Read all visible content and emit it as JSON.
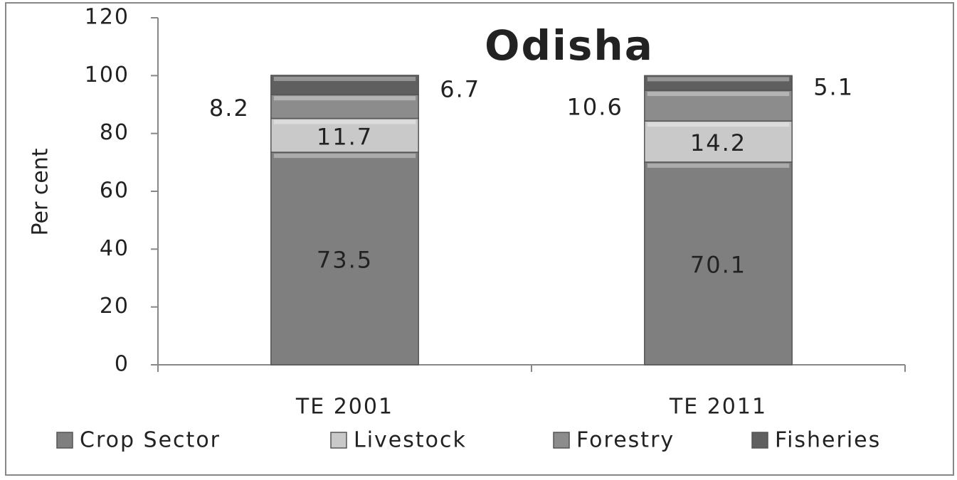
{
  "chart_data": {
    "type": "bar",
    "stacked": true,
    "title": "Odisha",
    "y_label": "Per cent",
    "categories": [
      "TE 2001",
      "TE 2011"
    ],
    "series": [
      {
        "name": "Crop Sector",
        "color": "#7f7f7f",
        "values": [
          73.5,
          70.1
        ]
      },
      {
        "name": "Livestock",
        "color": "#c9c9c9",
        "values": [
          11.7,
          14.2
        ]
      },
      {
        "name": "Forestry",
        "color": "#8c8c8c",
        "values": [
          8.2,
          10.6
        ]
      },
      {
        "name": "Fisheries",
        "color": "#5f5f5f",
        "values": [
          6.7,
          5.1
        ]
      }
    ],
    "ylim": [
      0,
      120
    ],
    "yticks": [
      0,
      20,
      40,
      60,
      80,
      100,
      120
    ],
    "legend": "bottom"
  }
}
